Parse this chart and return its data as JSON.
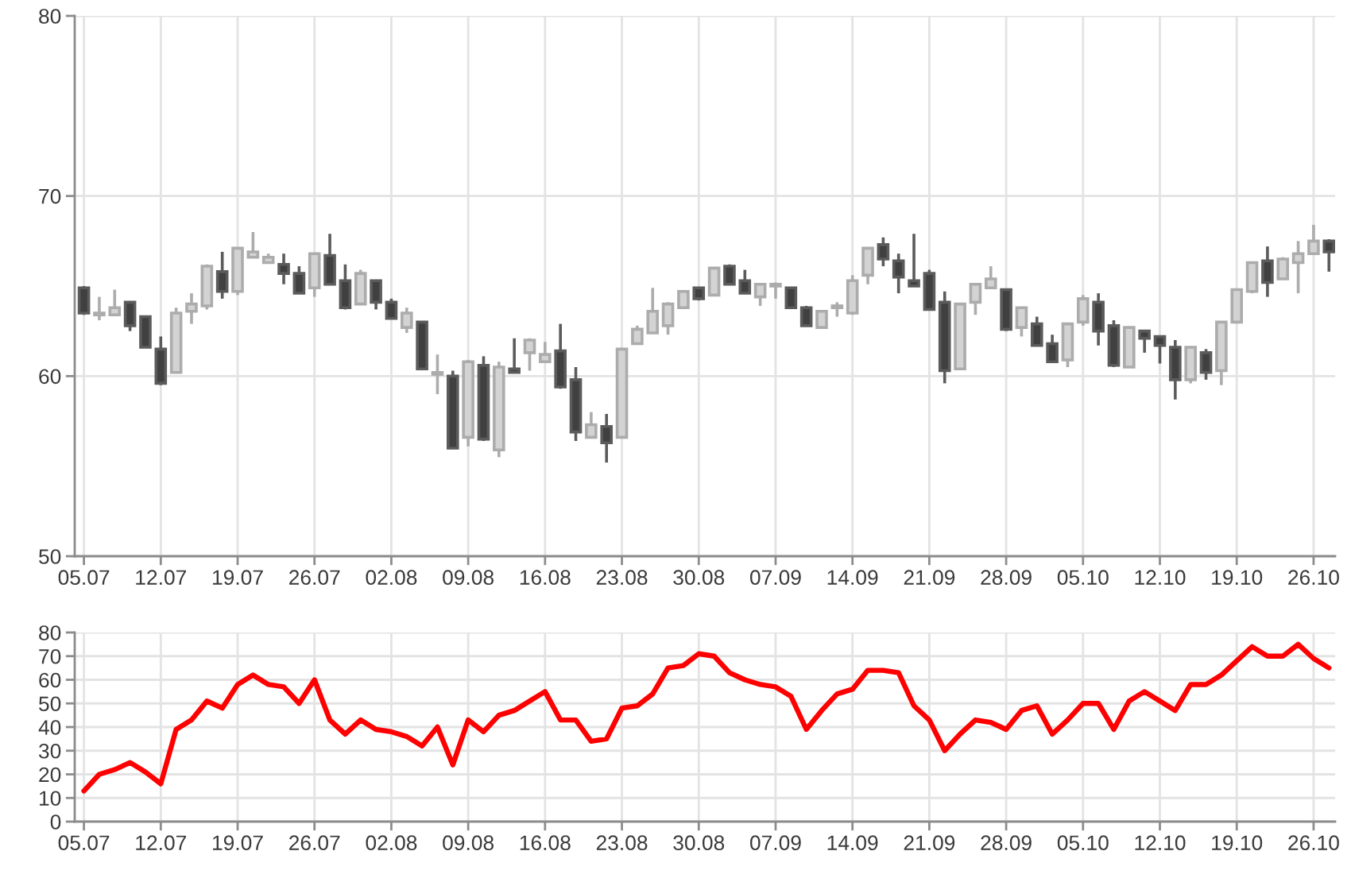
{
  "chart_data": [
    {
      "type": "candlestick",
      "categories": [
        "05.07",
        null,
        null,
        null,
        null,
        "12.07",
        null,
        null,
        null,
        null,
        "19.07",
        null,
        null,
        null,
        null,
        "26.07",
        null,
        null,
        null,
        null,
        "02.08",
        null,
        null,
        null,
        null,
        "09.08",
        null,
        null,
        null,
        null,
        "16.08",
        null,
        null,
        null,
        null,
        "23.08",
        null,
        null,
        null,
        null,
        "30.08",
        null,
        null,
        null,
        null,
        "07.09",
        null,
        null,
        null,
        null,
        "14.09",
        null,
        null,
        null,
        null,
        "21.09",
        null,
        null,
        null,
        null,
        "28.09",
        null,
        null,
        null,
        null,
        "05.10",
        null,
        null,
        null,
        null,
        "12.10",
        null,
        null,
        null,
        null,
        "19.10",
        null,
        null,
        null,
        null,
        "26.10",
        null
      ],
      "ohlc": [
        [
          64.9,
          65.0,
          63.4,
          63.5
        ],
        [
          63.4,
          64.4,
          63.1,
          63.5
        ],
        [
          63.4,
          64.8,
          63.4,
          63.8
        ],
        [
          64.1,
          64.1,
          62.5,
          62.8
        ],
        [
          63.3,
          63.3,
          61.6,
          61.6
        ],
        [
          61.5,
          62.2,
          59.5,
          59.6
        ],
        [
          60.2,
          63.8,
          60.2,
          63.5
        ],
        [
          63.6,
          64.6,
          62.9,
          64.0
        ],
        [
          63.9,
          66.2,
          63.7,
          66.1
        ],
        [
          65.8,
          66.9,
          64.3,
          64.7
        ],
        [
          64.7,
          67.1,
          64.5,
          67.1
        ],
        [
          66.6,
          68.0,
          66.6,
          66.9
        ],
        [
          66.3,
          66.8,
          66.3,
          66.6
        ],
        [
          66.2,
          66.8,
          65.1,
          65.7
        ],
        [
          65.7,
          66.1,
          64.6,
          64.6
        ],
        [
          64.9,
          66.8,
          64.4,
          66.8
        ],
        [
          66.7,
          67.9,
          65.1,
          65.1
        ],
        [
          65.3,
          66.2,
          63.7,
          63.8
        ],
        [
          64.0,
          65.9,
          64.0,
          65.7
        ],
        [
          65.3,
          65.3,
          63.7,
          64.1
        ],
        [
          64.1,
          64.3,
          63.2,
          63.2
        ],
        [
          62.7,
          63.8,
          62.4,
          63.5
        ],
        [
          63.0,
          63.0,
          60.4,
          60.4
        ],
        [
          60.1,
          61.2,
          59.0,
          60.2
        ],
        [
          60.0,
          60.3,
          56.0,
          56.0
        ],
        [
          56.6,
          60.9,
          56.1,
          60.8
        ],
        [
          60.6,
          61.1,
          56.4,
          56.5
        ],
        [
          55.9,
          60.8,
          55.5,
          60.5
        ],
        [
          60.4,
          62.1,
          60.2,
          60.2
        ],
        [
          61.3,
          62.1,
          60.3,
          62.0
        ],
        [
          60.8,
          61.9,
          60.8,
          61.2
        ],
        [
          61.4,
          62.9,
          59.3,
          59.4
        ],
        [
          59.8,
          60.5,
          56.4,
          56.9
        ],
        [
          56.6,
          58.0,
          56.6,
          57.3
        ],
        [
          57.2,
          57.9,
          55.2,
          56.3
        ],
        [
          56.6,
          61.5,
          56.6,
          61.5
        ],
        [
          61.8,
          62.8,
          61.8,
          62.6
        ],
        [
          62.4,
          64.9,
          62.4,
          63.6
        ],
        [
          62.8,
          64.1,
          62.3,
          64.0
        ],
        [
          63.8,
          64.7,
          63.8,
          64.7
        ],
        [
          64.9,
          64.9,
          64.2,
          64.3
        ],
        [
          64.5,
          66.0,
          64.5,
          66.0
        ],
        [
          66.1,
          66.2,
          65.1,
          65.1
        ],
        [
          65.3,
          65.9,
          64.6,
          64.6
        ],
        [
          64.4,
          65.1,
          63.9,
          65.1
        ],
        [
          65.0,
          65.2,
          64.3,
          65.1
        ],
        [
          64.9,
          64.9,
          63.8,
          63.8
        ],
        [
          63.8,
          63.9,
          62.8,
          62.8
        ],
        [
          62.7,
          63.6,
          62.7,
          63.6
        ],
        [
          63.8,
          64.1,
          63.3,
          63.9
        ],
        [
          63.5,
          65.6,
          63.4,
          65.3
        ],
        [
          65.6,
          67.1,
          65.1,
          67.1
        ],
        [
          67.3,
          67.7,
          66.1,
          66.5
        ],
        [
          66.4,
          66.8,
          64.6,
          65.5
        ],
        [
          65.3,
          67.9,
          65.0,
          65.0
        ],
        [
          65.7,
          65.9,
          63.7,
          63.7
        ],
        [
          64.1,
          64.7,
          59.6,
          60.3
        ],
        [
          60.4,
          64.0,
          60.4,
          64.0
        ],
        [
          64.1,
          65.1,
          63.4,
          65.1
        ],
        [
          64.9,
          66.1,
          64.9,
          65.4
        ],
        [
          64.8,
          64.8,
          62.5,
          62.6
        ],
        [
          62.7,
          63.8,
          62.2,
          63.8
        ],
        [
          62.9,
          63.3,
          61.7,
          61.7
        ],
        [
          61.8,
          62.3,
          60.8,
          60.8
        ],
        [
          60.9,
          62.9,
          60.5,
          62.9
        ],
        [
          63.0,
          64.5,
          62.8,
          64.3
        ],
        [
          64.1,
          64.6,
          61.7,
          62.5
        ],
        [
          62.8,
          63.1,
          60.5,
          60.6
        ],
        [
          60.5,
          62.7,
          60.5,
          62.7
        ],
        [
          62.5,
          62.5,
          61.3,
          62.1
        ],
        [
          62.2,
          62.2,
          60.7,
          61.7
        ],
        [
          61.6,
          62.0,
          58.7,
          59.8
        ],
        [
          59.8,
          61.6,
          59.6,
          61.6
        ],
        [
          61.3,
          61.5,
          59.8,
          60.2
        ],
        [
          60.3,
          63.0,
          59.5,
          63.0
        ],
        [
          63.0,
          64.8,
          63.0,
          64.8
        ],
        [
          64.7,
          66.3,
          64.6,
          66.3
        ],
        [
          66.4,
          67.2,
          64.4,
          65.2
        ],
        [
          65.4,
          66.6,
          65.4,
          66.5
        ],
        [
          66.3,
          67.5,
          64.6,
          66.8
        ],
        [
          66.8,
          68.4,
          66.8,
          67.5
        ],
        [
          67.5,
          67.6,
          65.8,
          66.9
        ]
      ],
      "colors": [
        "#404040",
        "#d3d3d3",
        "#d3d3d3",
        "#404040",
        "#404040",
        "#404040",
        "#d3d3d3",
        "#d3d3d3",
        "#d3d3d3",
        "#404040",
        "#d3d3d3",
        "#d3d3d3",
        "#d3d3d3",
        "#404040",
        "#404040",
        "#d3d3d3",
        "#404040",
        "#404040",
        "#d3d3d3",
        "#404040",
        "#404040",
        "#d3d3d3",
        "#404040",
        "#d3d3d3",
        "#404040",
        "#d3d3d3",
        "#404040",
        "#d3d3d3",
        "#404040",
        "#d3d3d3",
        "#d3d3d3",
        "#404040",
        "#404040",
        "#d3d3d3",
        "#404040",
        "#d3d3d3",
        "#d3d3d3",
        "#d3d3d3",
        "#d3d3d3",
        "#d3d3d3",
        "#404040",
        "#d3d3d3",
        "#404040",
        "#404040",
        "#d3d3d3",
        "#d3d3d3",
        "#404040",
        "#404040",
        "#d3d3d3",
        "#d3d3d3",
        "#d3d3d3",
        "#d3d3d3",
        "#404040",
        "#404040",
        "#404040",
        "#404040",
        "#404040",
        "#d3d3d3",
        "#d3d3d3",
        "#d3d3d3",
        "#404040",
        "#d3d3d3",
        "#404040",
        "#404040",
        "#d3d3d3",
        "#d3d3d3",
        "#404040",
        "#404040",
        "#d3d3d3",
        "#404040",
        "#404040",
        "#404040",
        "#d3d3d3",
        "#404040",
        "#d3d3d3",
        "#d3d3d3",
        "#d3d3d3",
        "#404040",
        "#d3d3d3",
        "#d3d3d3",
        "#d3d3d3",
        "#404040"
      ],
      "ylim": [
        50,
        80
      ],
      "yticks": [
        50,
        60,
        70,
        80
      ],
      "grid": true
    },
    {
      "type": "line",
      "categories": [
        "05.07",
        null,
        null,
        null,
        null,
        "12.07",
        null,
        null,
        null,
        null,
        "19.07",
        null,
        null,
        null,
        null,
        "26.07",
        null,
        null,
        null,
        null,
        "02.08",
        null,
        null,
        null,
        null,
        "09.08",
        null,
        null,
        null,
        null,
        "16.08",
        null,
        null,
        null,
        null,
        "23.08",
        null,
        null,
        null,
        null,
        "30.08",
        null,
        null,
        null,
        null,
        "07.09",
        null,
        null,
        null,
        null,
        "14.09",
        null,
        null,
        null,
        null,
        "21.09",
        null,
        null,
        null,
        null,
        "28.09",
        null,
        null,
        null,
        null,
        "05.10",
        null,
        null,
        null,
        null,
        "12.10",
        null,
        null,
        null,
        null,
        "19.10",
        null,
        null,
        null,
        null,
        "26.10",
        null
      ],
      "series": [
        {
          "color": "#ff0000",
          "values": [
            13,
            20,
            22,
            25,
            21,
            16,
            39,
            43,
            51,
            48,
            58,
            62,
            58,
            57,
            50,
            60,
            43,
            37,
            43,
            39,
            38,
            36,
            32,
            40,
            24,
            43,
            38,
            45,
            47,
            51,
            55,
            43,
            43,
            34,
            35,
            48,
            49,
            54,
            65,
            66,
            71,
            70,
            63,
            60,
            58,
            57,
            53,
            39,
            47,
            54,
            56,
            64,
            64,
            63,
            49,
            43,
            30,
            37,
            43,
            42,
            39,
            47,
            49,
            37,
            43,
            50,
            50,
            39,
            51,
            55,
            51,
            47,
            58,
            58,
            62,
            68,
            74,
            70,
            70,
            75,
            69,
            65
          ]
        }
      ],
      "ylim": [
        0,
        80
      ],
      "yticks": [
        0,
        10,
        20,
        30,
        40,
        50,
        60,
        70,
        80
      ],
      "grid": true
    }
  ]
}
